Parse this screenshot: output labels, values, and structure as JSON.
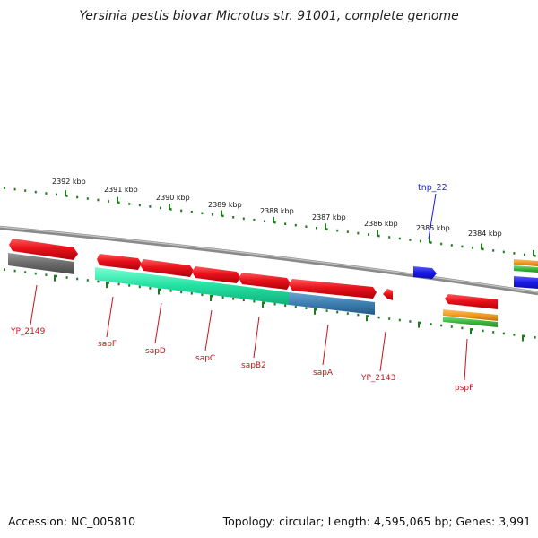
{
  "title": "Yersinia pestis biovar Microtus str. 91001, complete genome",
  "footer": {
    "accession": "Accession: NC_005810",
    "summary": "Topology: circular; Length: 4,595,065 bp; Genes: 3,991"
  },
  "scale_labels": [
    "2392 kbp",
    "2391 kbp",
    "2390 kbp",
    "2389 kbp",
    "2388 kbp",
    "2387 kbp",
    "2386 kbp",
    "2385 kbp",
    "2384 kbp"
  ],
  "gene_labels": [
    "YP_2149",
    "sapF",
    "sapD",
    "sapC",
    "sapB2",
    "sapA",
    "YP_2143",
    "pspF",
    "tnp_22"
  ],
  "colors": {
    "gene": "#e8121c",
    "pseudo_grey": "#6f6f6f",
    "operon_green": "#22e0a0",
    "operon_blue": "#3d7fb0",
    "transposon": "#1a1ae6",
    "orange": "#f09a20",
    "green": "#3cb83c",
    "tick_green": "#1e7a1e",
    "backbone": "#8a8a8a",
    "label_red": "#c8141c",
    "label_blue": "#1a1ae6"
  }
}
